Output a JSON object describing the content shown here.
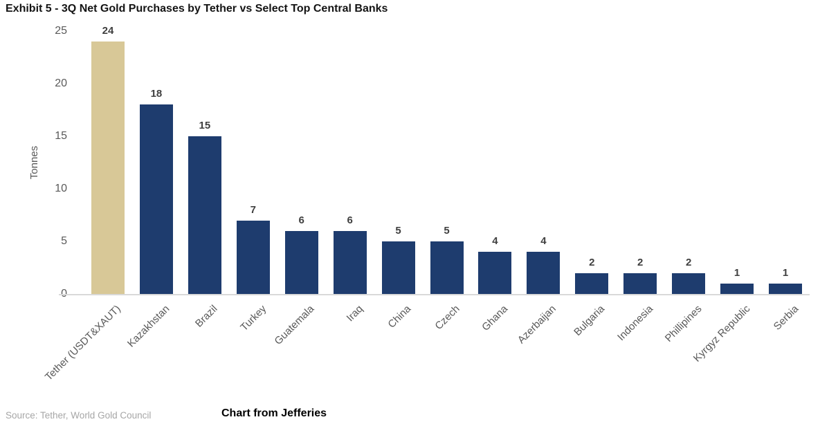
{
  "title": "Exhibit 5 - 3Q Net Gold Purchases by Tether vs Select Top Central Banks",
  "chart_data": {
    "type": "bar",
    "title": "Exhibit 5 - 3Q Net Gold Purchases by Tether vs Select Top Central Banks",
    "categories": [
      "Tether (USDT&XAUT)",
      "Kazakhstan",
      "Brazil",
      "Turkey",
      "Guatemala",
      "Iraq",
      "China",
      "Czech",
      "Ghana",
      "Azerbaijan",
      "Bulgaria",
      "Indonesia",
      "Phillipines",
      "Kyrgyz Republic",
      "Serbia"
    ],
    "values": [
      24,
      18,
      15,
      7,
      6,
      6,
      5,
      5,
      4,
      4,
      2,
      2,
      2,
      1,
      1
    ],
    "xlabel": "",
    "ylabel": "Tonnes",
    "yticks": [
      0,
      5,
      10,
      15,
      20,
      25
    ],
    "ylim": [
      0,
      25
    ],
    "grid": false,
    "legend": false,
    "colors": {
      "highlight_index": 0,
      "highlight_bar": "#d8c897",
      "default_bar": "#1e3c6e",
      "axis_text": "#595959",
      "value_label": "#3f3f3f",
      "baseline": "#d9d9d9"
    }
  },
  "footer": {
    "source": "Source: Tether, World Gold Council",
    "credit": "Chart from Jefferies"
  }
}
